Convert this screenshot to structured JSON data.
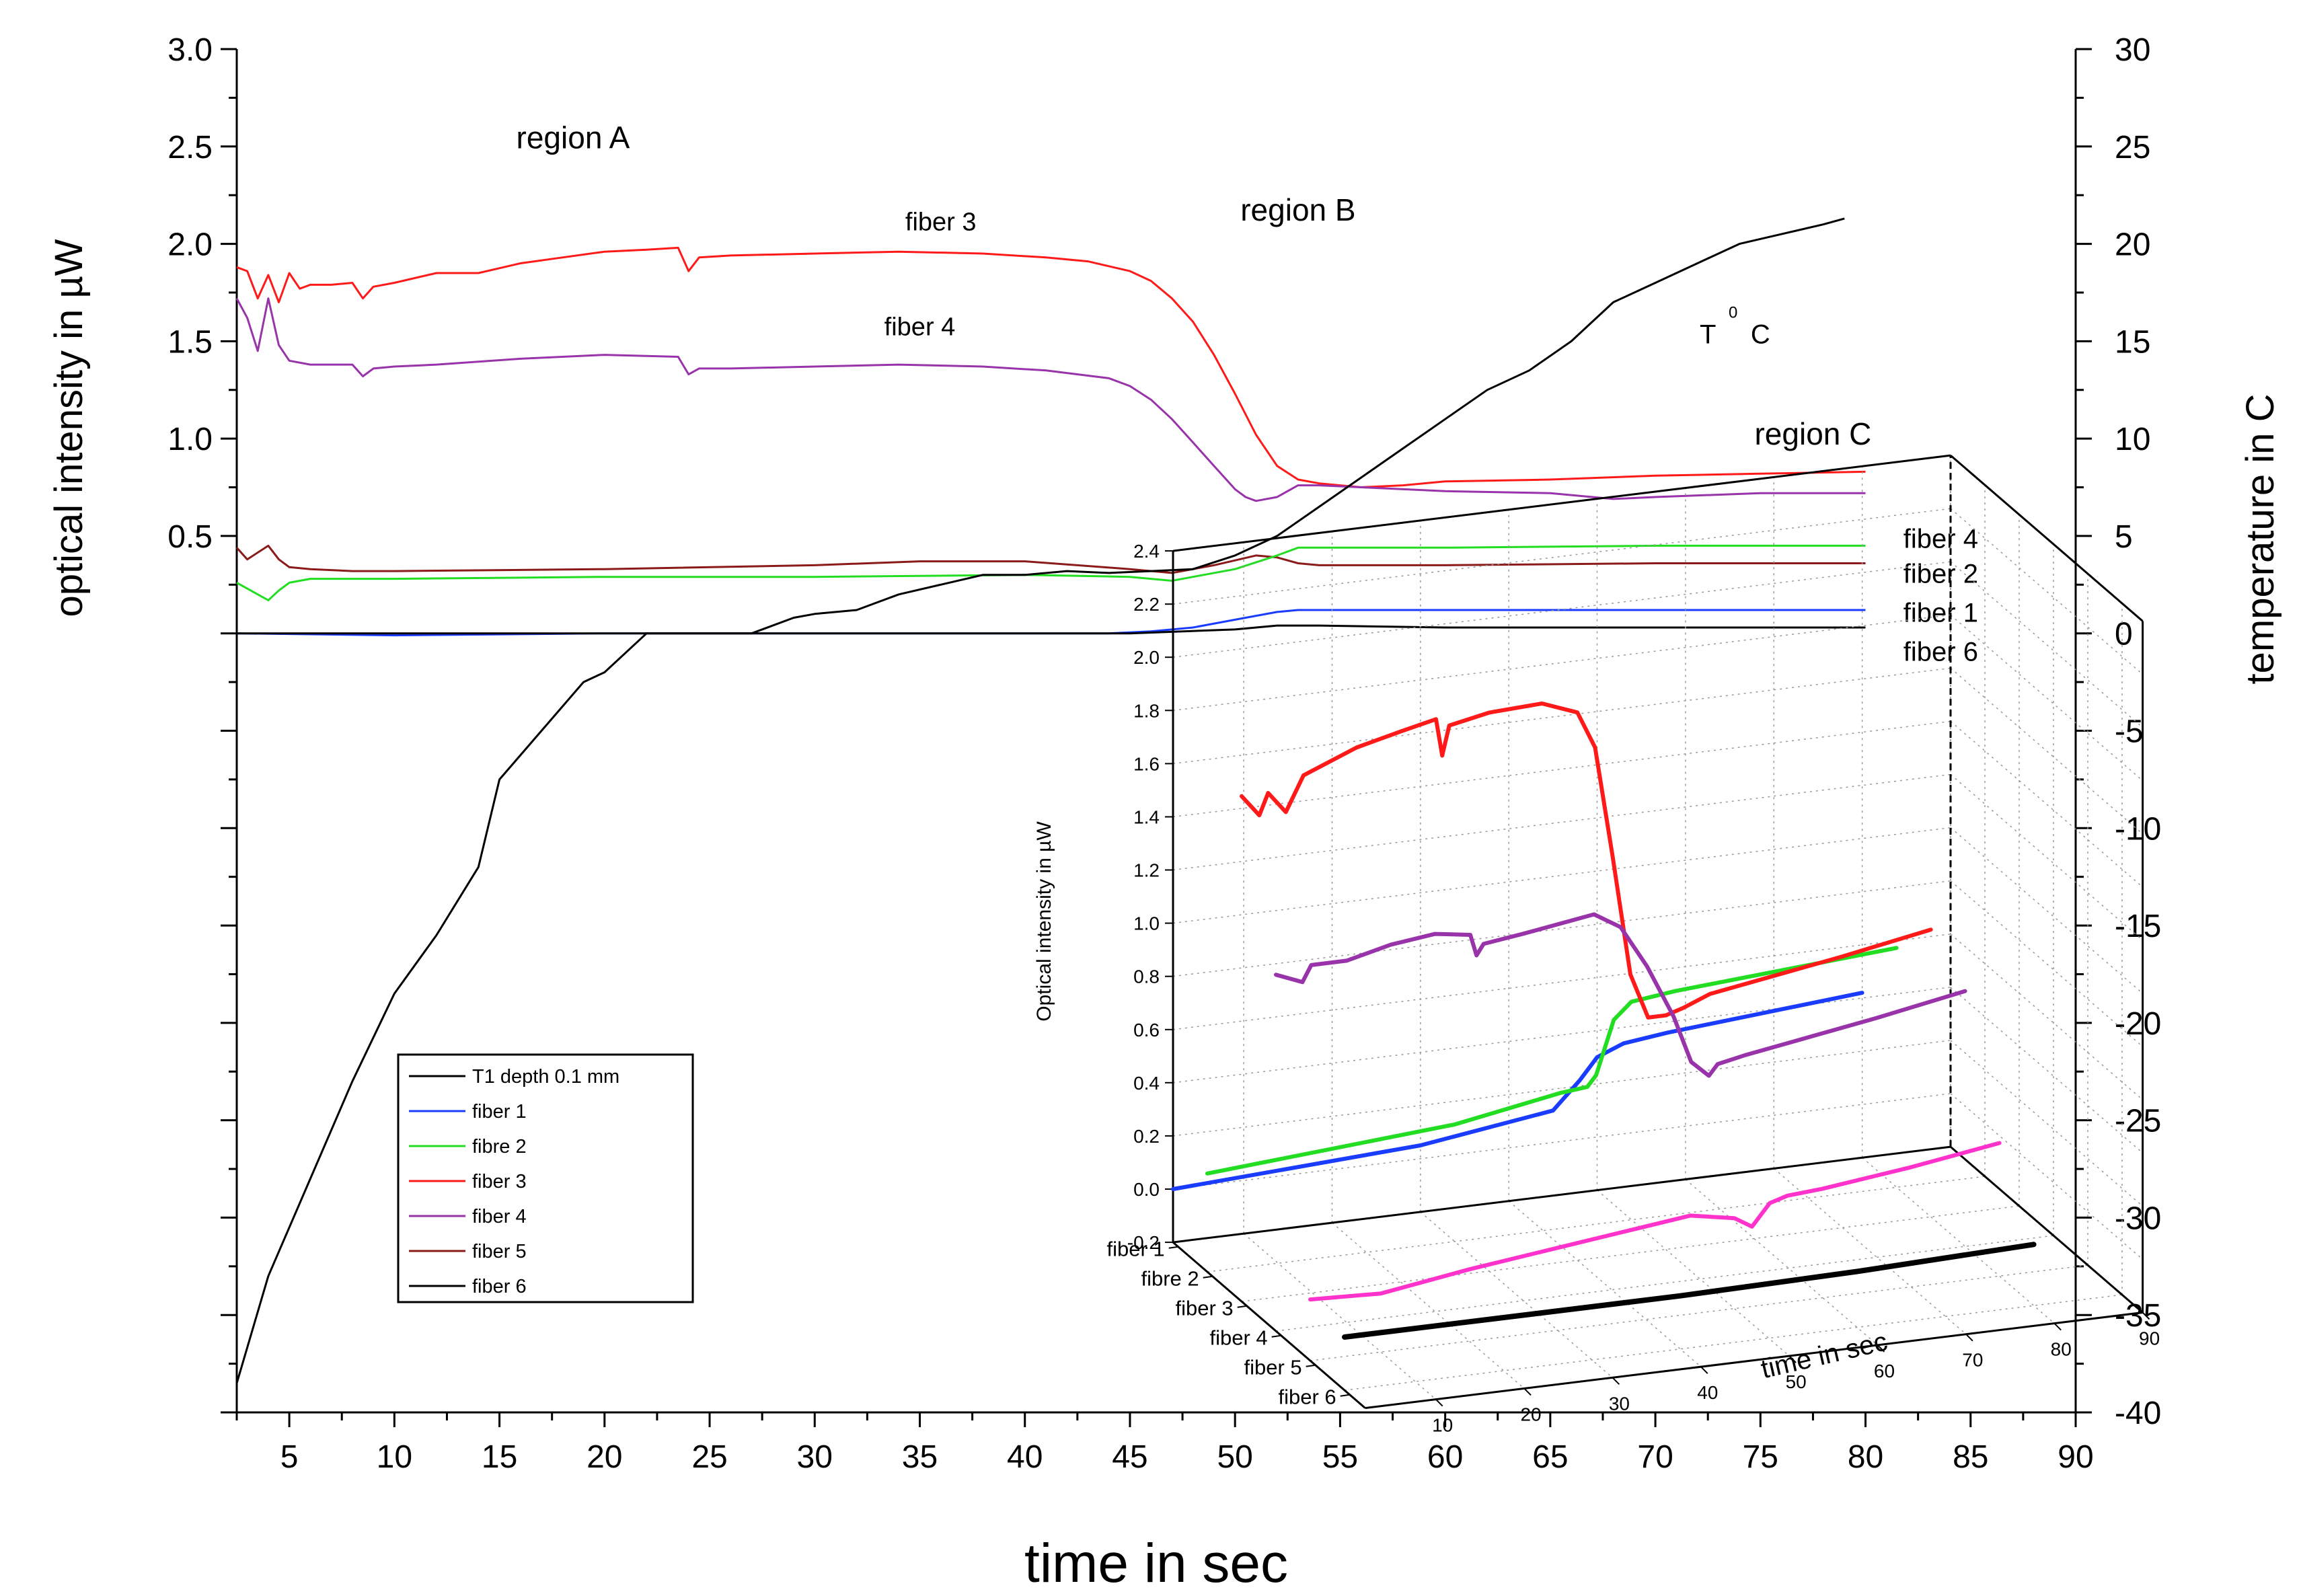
{
  "chart_data": [
    {
      "type": "line",
      "xlabel": "time in sec",
      "ylabel_left": "optical intensity in µW",
      "ylabel_right": "temperature in C",
      "xlim": [
        2.5,
        90
      ],
      "ylim_left": [
        -4,
        3.0
      ],
      "ylim_right": [
        -40,
        30
      ],
      "x_ticks": [
        5,
        10,
        15,
        20,
        25,
        30,
        35,
        40,
        45,
        50,
        55,
        60,
        65,
        70,
        75,
        80,
        85,
        90
      ],
      "y_left_ticks": [
        {
          "v": 3.0,
          "label": "3.0"
        },
        {
          "v": 2.5,
          "label": "2.5"
        },
        {
          "v": 2.0,
          "label": "2.0"
        },
        {
          "v": 1.5,
          "label": "1.5"
        },
        {
          "v": 1.0,
          "label": "1.0"
        },
        {
          "v": 0.5,
          "label": "0.5"
        }
      ],
      "y_right_ticks": [
        30,
        25,
        20,
        15,
        10,
        5,
        0,
        -5,
        -10,
        -15,
        -20,
        -25,
        -30,
        -35,
        -40
      ],
      "annotations": [
        {
          "text": "region A",
          "x": 18.5,
          "y": 2.49,
          "size": 46,
          "anchor": "middle"
        },
        {
          "text": "region B",
          "x": 53,
          "y": 2.12,
          "size": 46,
          "anchor": "middle"
        },
        {
          "text": "region C",
          "x": 77.5,
          "y": 0.97,
          "size": 46,
          "anchor": "middle"
        },
        {
          "text": "fiber 3",
          "x": 36,
          "y": 2.07,
          "size": 38,
          "anchor": "middle"
        },
        {
          "text": "fiber 4",
          "x": 35,
          "y": 1.53,
          "size": 38,
          "anchor": "middle"
        },
        {
          "text": "T",
          "x": 72.5,
          "y": 1.49,
          "size": 40,
          "anchor": "middle"
        },
        {
          "text": "0",
          "x": 73.7,
          "y": 1.62,
          "size": 24,
          "anchor": "middle"
        },
        {
          "text": "C",
          "x": 75,
          "y": 1.49,
          "size": 40,
          "anchor": "middle"
        },
        {
          "text": "fiber 4",
          "x": 81.8,
          "y": 0.44,
          "size": 40,
          "anchor": "start"
        },
        {
          "text": "fiber 2",
          "x": 81.8,
          "y": 0.26,
          "size": 40,
          "anchor": "start"
        },
        {
          "text": "fiber 1",
          "x": 81.8,
          "y": 0.06,
          "size": 40,
          "anchor": "start"
        },
        {
          "text": "fiber 6",
          "x": 81.8,
          "y": -0.14,
          "size": 40,
          "anchor": "start"
        }
      ],
      "legend": {
        "position": "lower-left",
        "entries": [
          {
            "label": "T1 depth 0.1 mm",
            "color": "#000000"
          },
          {
            "label": "fiber 1",
            "color": "#1a3cff"
          },
          {
            "label": "fibre 2",
            "color": "#22dd22"
          },
          {
            "label": "fiber 3",
            "color": "#ff1a1a"
          },
          {
            "label": "fiber 4",
            "color": "#9933aa"
          },
          {
            "label": "fiber 5",
            "color": "#8b1a1a"
          },
          {
            "label": "fiber 6",
            "color": "#000000"
          }
        ]
      },
      "series": [
        {
          "name": "fiber 3",
          "axis": "left",
          "color": "#ff1a1a",
          "x": [
            2.5,
            3,
            3.5,
            4,
            4.5,
            5,
            5.5,
            6,
            7,
            8,
            8.5,
            9,
            10,
            12,
            14,
            16,
            18,
            20,
            22,
            23.5,
            24,
            24.5,
            26,
            30,
            34,
            38,
            41,
            43,
            45,
            46,
            47,
            48,
            49,
            50,
            51,
            52,
            53,
            54,
            56,
            58,
            60,
            65,
            70,
            75,
            80
          ],
          "y": [
            1.88,
            1.86,
            1.72,
            1.84,
            1.7,
            1.85,
            1.77,
            1.79,
            1.79,
            1.8,
            1.72,
            1.78,
            1.8,
            1.85,
            1.85,
            1.9,
            1.93,
            1.96,
            1.97,
            1.98,
            1.86,
            1.93,
            1.94,
            1.95,
            1.96,
            1.95,
            1.93,
            1.91,
            1.86,
            1.81,
            1.72,
            1.6,
            1.43,
            1.23,
            1.02,
            0.86,
            0.79,
            0.77,
            0.75,
            0.76,
            0.78,
            0.79,
            0.81,
            0.82,
            0.83
          ]
        },
        {
          "name": "fiber 4",
          "axis": "left",
          "color": "#9933aa",
          "x": [
            2.5,
            3,
            3.5,
            4,
            4.5,
            5,
            6,
            8,
            8.5,
            9,
            10,
            12,
            16,
            20,
            23.5,
            24,
            24.5,
            26,
            30,
            34,
            38,
            41,
            44,
            45,
            46,
            47,
            48,
            49,
            50,
            50.5,
            51,
            52,
            53,
            54,
            56,
            60,
            65,
            68,
            70,
            75,
            80
          ],
          "y": [
            1.72,
            1.62,
            1.45,
            1.72,
            1.48,
            1.4,
            1.38,
            1.38,
            1.32,
            1.36,
            1.37,
            1.38,
            1.41,
            1.43,
            1.42,
            1.33,
            1.36,
            1.36,
            1.37,
            1.38,
            1.37,
            1.35,
            1.31,
            1.27,
            1.2,
            1.1,
            0.98,
            0.86,
            0.74,
            0.7,
            0.68,
            0.7,
            0.76,
            0.76,
            0.75,
            0.73,
            0.72,
            0.69,
            0.7,
            0.72,
            0.72
          ]
        },
        {
          "name": "fiber 5",
          "axis": "left",
          "color": "#8b1a1a",
          "x": [
            2.5,
            3,
            4,
            4.5,
            5,
            6,
            8,
            10,
            20,
            30,
            35,
            40,
            45,
            47,
            49,
            51,
            52,
            53,
            54,
            60,
            70,
            80
          ],
          "y": [
            0.44,
            0.38,
            0.45,
            0.38,
            0.34,
            0.33,
            0.32,
            0.32,
            0.33,
            0.35,
            0.37,
            0.37,
            0.33,
            0.31,
            0.35,
            0.4,
            0.39,
            0.36,
            0.35,
            0.35,
            0.36,
            0.36
          ]
        },
        {
          "name": "fibre 2",
          "axis": "left",
          "color": "#22dd22",
          "x": [
            2.5,
            3,
            4,
            4.5,
            5,
            6,
            8,
            10,
            20,
            30,
            40,
            45,
            47,
            48,
            50,
            52,
            53,
            54,
            60,
            70,
            80
          ],
          "y": [
            0.26,
            0.23,
            0.17,
            0.22,
            0.26,
            0.28,
            0.28,
            0.28,
            0.29,
            0.29,
            0.3,
            0.29,
            0.27,
            0.29,
            0.33,
            0.4,
            0.44,
            0.44,
            0.44,
            0.45,
            0.45
          ]
        },
        {
          "name": "fiber 1",
          "axis": "left",
          "color": "#1a3cff",
          "x": [
            2.5,
            10,
            20,
            30,
            40,
            44,
            46,
            48,
            50,
            52,
            53,
            54,
            60,
            70,
            80
          ],
          "y": [
            0.0,
            -0.01,
            0.0,
            0.0,
            0.0,
            0.0,
            0.01,
            0.03,
            0.07,
            0.11,
            0.12,
            0.12,
            0.12,
            0.12,
            0.12
          ]
        },
        {
          "name": "fiber 6",
          "axis": "left",
          "color": "#000000",
          "x": [
            2.5,
            10,
            20,
            30,
            40,
            45,
            50,
            52,
            54,
            60,
            70,
            80
          ],
          "y": [
            0.0,
            0.0,
            0.0,
            0.0,
            0.0,
            0.0,
            0.02,
            0.04,
            0.04,
            0.03,
            0.03,
            0.03
          ]
        },
        {
          "name": "T1 depth 0.1 mm",
          "axis": "right",
          "color": "#000000",
          "x": [
            2.5,
            4,
            6,
            8,
            10,
            12,
            14,
            15,
            17,
            19,
            20,
            21,
            22,
            24,
            26,
            27,
            29,
            30,
            32,
            34,
            36,
            38,
            40,
            42,
            44,
            46,
            48,
            50,
            52,
            54,
            56,
            58,
            60,
            62,
            64,
            66,
            68,
            70,
            72,
            74,
            76,
            78,
            79
          ],
          "y": [
            -38.5,
            -33,
            -28,
            -23,
            -18.5,
            -15.5,
            -12,
            -7.5,
            -5,
            -2.5,
            -2,
            -1,
            0,
            0,
            0,
            0,
            0.8,
            1,
            1.2,
            2,
            2.5,
            3,
            3,
            3.2,
            3.1,
            3.2,
            3.3,
            4,
            5,
            6.5,
            8,
            9.5,
            11,
            12.5,
            13.5,
            15,
            17,
            18,
            19,
            20,
            20.5,
            21,
            21.3
          ]
        }
      ]
    },
    {
      "type": "line",
      "subtype": "3d-waterfall",
      "zlabel": "Optical intensity in µW",
      "xlabel": "time in sec",
      "x_ticks": [
        10,
        20,
        30,
        40,
        50,
        60,
        70,
        80,
        90
      ],
      "z_ticks": [
        "2.4",
        "2.2",
        "2.0",
        "1.8",
        "1.6",
        "1.4",
        "1.2",
        "1.0",
        "0.8",
        "0.6",
        "0.4",
        "0.2",
        "0.0",
        "-0.2"
      ],
      "y_categories": [
        "fiber 1",
        "fibre 2",
        "fiber 3",
        "fiber 4",
        "fiber 5",
        "fiber 6"
      ],
      "series": [
        {
          "name": "fiber 1",
          "color": "#1a3cff",
          "x": [
            2,
            30,
            45,
            48,
            50,
            53,
            58,
            80
          ],
          "z": [
            0.0,
            0.05,
            0.12,
            0.22,
            0.3,
            0.34,
            0.36,
            0.42
          ]
        },
        {
          "name": "fibre 2",
          "color": "#22dd22",
          "x": [
            2,
            30,
            42,
            45,
            46,
            48,
            50,
            55,
            80
          ],
          "z": [
            0.17,
            0.24,
            0.31,
            0.32,
            0.36,
            0.56,
            0.62,
            0.64,
            0.7
          ]
        },
        {
          "name": "fiber 3",
          "color": "#ff1a1a",
          "x": [
            2,
            4,
            5,
            7,
            9,
            15,
            20,
            24,
            24.7,
            25.5,
            30,
            36,
            40,
            42,
            44,
            46,
            48,
            50,
            52,
            55,
            70,
            80
          ],
          "z": [
            1.7,
            1.62,
            1.7,
            1.62,
            1.75,
            1.83,
            1.87,
            1.9,
            1.76,
            1.87,
            1.9,
            1.91,
            1.86,
            1.72,
            1.3,
            0.85,
            0.68,
            0.68,
            0.7,
            0.74,
            0.82,
            0.88
          ]
        },
        {
          "name": "fiber 4",
          "color": "#9933aa",
          "x": [
            2,
            5,
            6,
            10,
            15,
            20,
            24,
            24.7,
            25.5,
            30,
            38,
            41,
            44,
            47,
            49,
            51,
            52,
            55,
            70,
            80
          ],
          "z": [
            1.14,
            1.1,
            1.16,
            1.16,
            1.2,
            1.22,
            1.2,
            1.12,
            1.16,
            1.18,
            1.22,
            1.16,
            1.0,
            0.8,
            0.62,
            0.56,
            0.6,
            0.62,
            0.7,
            0.76
          ]
        },
        {
          "name": "fiber 5",
          "color": "#ff33cc",
          "x": [
            2,
            10,
            20,
            30,
            40,
            45,
            50,
            52,
            54,
            56,
            60,
            70,
            80
          ],
          "z": [
            0.03,
            0.02,
            0.07,
            0.11,
            0.15,
            0.17,
            0.14,
            0.1,
            0.18,
            0.2,
            0.21,
            0.25,
            0.3
          ]
        },
        {
          "name": "fiber 6",
          "color": "#000000",
          "x": [
            2,
            20,
            40,
            60,
            80
          ],
          "z": [
            0.0,
            0.0,
            0.0,
            0.01,
            0.03
          ]
        }
      ]
    }
  ]
}
